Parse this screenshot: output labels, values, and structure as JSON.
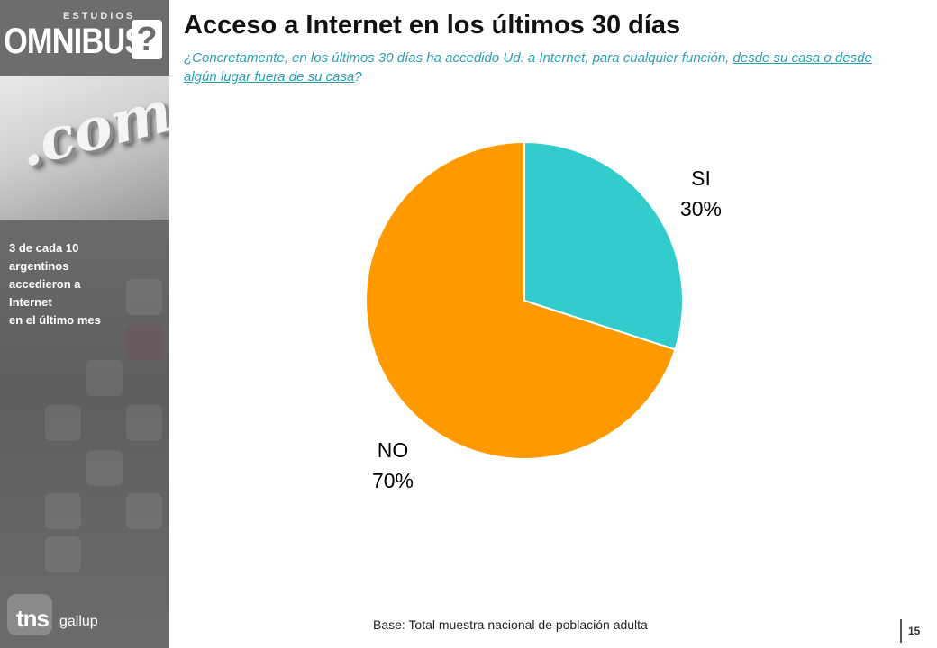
{
  "brand": {
    "estudios": "ESTUDIOS",
    "omnibus": "OMNIBUS",
    "q_mark": "?",
    "dotcom": ".com",
    "tns": "tns",
    "gallup": "gallup"
  },
  "sidebar": {
    "note_lines": [
      "3 de cada 10",
      "argentinos",
      "accedieron a",
      "Internet",
      "en el último mes"
    ]
  },
  "header": {
    "title": "Acceso a Internet en los últimos 30 días",
    "subtitle_part1": "¿Concretamente, en los últimos 30 días ha accedido Ud. a Internet, para cualquier función, ",
    "subtitle_part2": "desde su casa o desde algún lugar fuera de su casa",
    "subtitle_part3": "?"
  },
  "chart_data": {
    "type": "pie",
    "slices": [
      {
        "label": "SI",
        "value": 30,
        "value_label": "30%",
        "color": "#33cccc"
      },
      {
        "label": "NO",
        "value": 70,
        "value_label": "70%",
        "color": "#ff9900"
      }
    ]
  },
  "footer": {
    "base": "Base: Total muestra nacional de población adulta",
    "page": "15"
  },
  "colors": {
    "accent": "#2a9fb3",
    "sidebar": "#6d6d6d"
  }
}
